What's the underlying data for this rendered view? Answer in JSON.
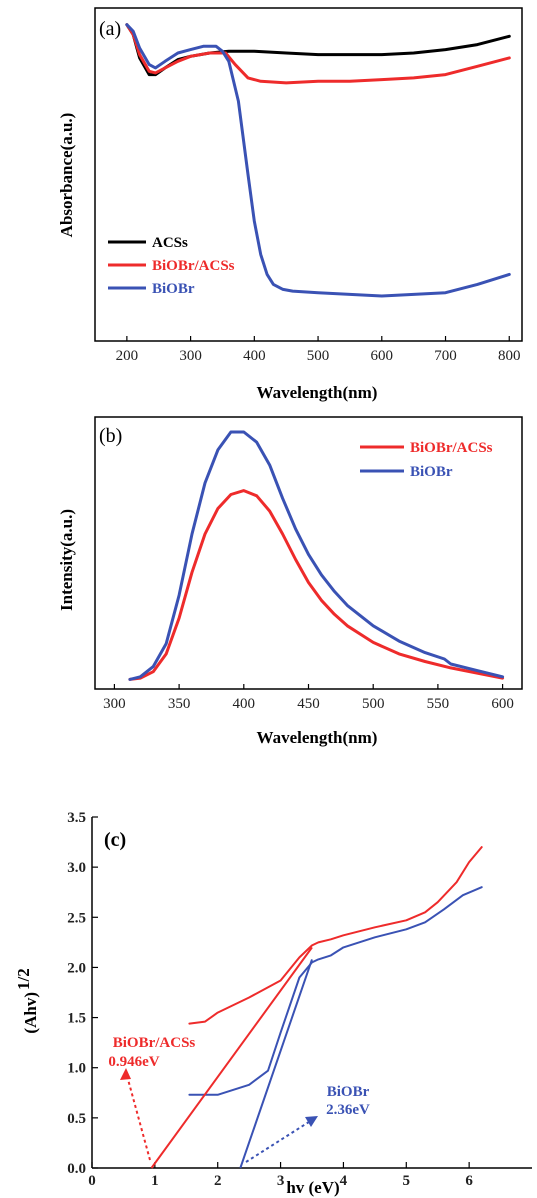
{
  "colors": {
    "black_series": "#000000",
    "red_series": "#ee2b2b",
    "blue_series": "#3a52b4"
  },
  "chart_data": [
    {
      "type": "line",
      "panel_label": "(a)",
      "xlabel": "Wavelength(nm)",
      "ylabel": "Absorbance(a.u.)",
      "xlim": [
        150,
        820
      ],
      "ylim": [
        0,
        1
      ],
      "x_ticks": [
        200,
        300,
        400,
        500,
        600,
        700,
        800
      ],
      "y_ticks_shown": false,
      "legend_position": "lower-left",
      "series": [
        {
          "name": "ACSs",
          "color": "#000000",
          "x": [
            200,
            210,
            220,
            235,
            245,
            260,
            280,
            300,
            330,
            360,
            400,
            450,
            500,
            550,
            600,
            650,
            700,
            750,
            800
          ],
          "y": [
            0.95,
            0.92,
            0.85,
            0.8,
            0.8,
            0.82,
            0.845,
            0.855,
            0.865,
            0.87,
            0.87,
            0.865,
            0.86,
            0.86,
            0.86,
            0.865,
            0.875,
            0.89,
            0.915
          ]
        },
        {
          "name": "BiOBr/ACSs",
          "color": "#ee2b2b",
          "x": [
            200,
            210,
            220,
            235,
            245,
            260,
            280,
            300,
            330,
            355,
            370,
            390,
            410,
            450,
            500,
            550,
            600,
            650,
            700,
            750,
            800
          ],
          "y": [
            0.95,
            0.92,
            0.86,
            0.81,
            0.805,
            0.82,
            0.84,
            0.855,
            0.865,
            0.865,
            0.83,
            0.79,
            0.78,
            0.775,
            0.78,
            0.78,
            0.785,
            0.79,
            0.8,
            0.825,
            0.85
          ]
        },
        {
          "name": "BiOBr",
          "color": "#3a52b4",
          "x": [
            200,
            210,
            220,
            235,
            245,
            260,
            280,
            300,
            320,
            340,
            350,
            360,
            375,
            390,
            400,
            410,
            420,
            430,
            445,
            460,
            500,
            550,
            600,
            650,
            700,
            750,
            800
          ],
          "y": [
            0.95,
            0.93,
            0.88,
            0.83,
            0.82,
            0.84,
            0.865,
            0.875,
            0.885,
            0.885,
            0.87,
            0.84,
            0.72,
            0.5,
            0.36,
            0.26,
            0.2,
            0.17,
            0.155,
            0.15,
            0.145,
            0.14,
            0.135,
            0.14,
            0.145,
            0.17,
            0.2
          ]
        }
      ]
    },
    {
      "type": "line",
      "panel_label": "(b)",
      "xlabel": "Wavelength(nm)",
      "ylabel": "Intensity(a.u.)",
      "xlim": [
        285,
        615
      ],
      "ylim": [
        0,
        1
      ],
      "x_ticks": [
        300,
        350,
        400,
        450,
        500,
        550,
        600
      ],
      "y_ticks_shown": false,
      "legend_position": "top-right",
      "series": [
        {
          "name": "BiOBr/ACSs",
          "color": "#ee2b2b",
          "x": [
            312,
            320,
            330,
            340,
            350,
            360,
            370,
            380,
            390,
            400,
            410,
            420,
            430,
            440,
            450,
            460,
            470,
            480,
            500,
            520,
            540,
            560,
            580,
            600
          ],
          "y": [
            0.03,
            0.035,
            0.06,
            0.13,
            0.27,
            0.45,
            0.6,
            0.7,
            0.755,
            0.77,
            0.75,
            0.69,
            0.6,
            0.5,
            0.41,
            0.34,
            0.285,
            0.24,
            0.175,
            0.13,
            0.1,
            0.075,
            0.055,
            0.035
          ]
        },
        {
          "name": "BiOBr",
          "color": "#3a52b4",
          "x": [
            312,
            320,
            330,
            340,
            350,
            360,
            370,
            380,
            390,
            400,
            410,
            420,
            430,
            440,
            450,
            460,
            470,
            480,
            500,
            520,
            540,
            555,
            560,
            580,
            600
          ],
          "y": [
            0.03,
            0.04,
            0.08,
            0.17,
            0.36,
            0.6,
            0.8,
            0.93,
            1.0,
            1.0,
            0.96,
            0.87,
            0.74,
            0.62,
            0.52,
            0.44,
            0.375,
            0.32,
            0.24,
            0.18,
            0.135,
            0.11,
            0.09,
            0.065,
            0.04
          ]
        }
      ]
    },
    {
      "type": "line",
      "panel_label": "(c)",
      "xlabel": "hv (eV)",
      "ylabel": "(Ahv)",
      "ylabel_superscript": "1/2",
      "xlim": [
        0,
        7
      ],
      "ylim": [
        0,
        3.5
      ],
      "x_ticks": [
        0,
        1,
        2,
        3,
        4,
        5,
        6
      ],
      "y_ticks": [
        "0.0",
        "0.5",
        "1.0",
        "1.5",
        "2.0",
        "2.5",
        "3.0",
        "3.5"
      ],
      "series": [
        {
          "name": "BiOBr/ACSs",
          "color": "#ee2b2b",
          "x": [
            1.55,
            1.8,
            2.0,
            2.5,
            3.0,
            3.3,
            3.5,
            3.6,
            3.8,
            4.0,
            4.5,
            5.0,
            5.3,
            5.5,
            5.8,
            6.0,
            6.2
          ],
          "y": [
            1.44,
            1.46,
            1.55,
            1.7,
            1.87,
            2.1,
            2.22,
            2.25,
            2.28,
            2.32,
            2.4,
            2.47,
            2.55,
            2.65,
            2.85,
            3.05,
            3.2
          ]
        },
        {
          "name": "BiOBr",
          "color": "#3a52b4",
          "x": [
            1.55,
            2.0,
            2.5,
            2.8,
            3.0,
            3.3,
            3.5,
            3.6,
            3.8,
            4.0,
            4.5,
            5.0,
            5.3,
            5.6,
            5.9,
            6.2
          ],
          "y": [
            0.73,
            0.73,
            0.83,
            0.97,
            1.35,
            1.9,
            2.05,
            2.08,
            2.12,
            2.2,
            2.3,
            2.38,
            2.45,
            2.58,
            2.72,
            2.8
          ]
        }
      ],
      "tangent_lines": [
        {
          "color": "#ee2b2b",
          "x": [
            0.946,
            3.5
          ],
          "y": [
            0.0,
            2.2
          ]
        },
        {
          "color": "#3a52b4",
          "x": [
            2.36,
            3.5
          ],
          "y": [
            0.0,
            2.08
          ]
        }
      ],
      "annotations": [
        {
          "id": "red_name",
          "text": "BiOBr/ACSs",
          "color": "#ee2b2b"
        },
        {
          "id": "red_value",
          "text": "0.946eV",
          "color": "#ee2b2b"
        },
        {
          "id": "blue_name",
          "text": "BiOBr",
          "color": "#3a52b4"
        },
        {
          "id": "blue_value",
          "text": "2.36eV",
          "color": "#3a52b4"
        }
      ]
    }
  ]
}
